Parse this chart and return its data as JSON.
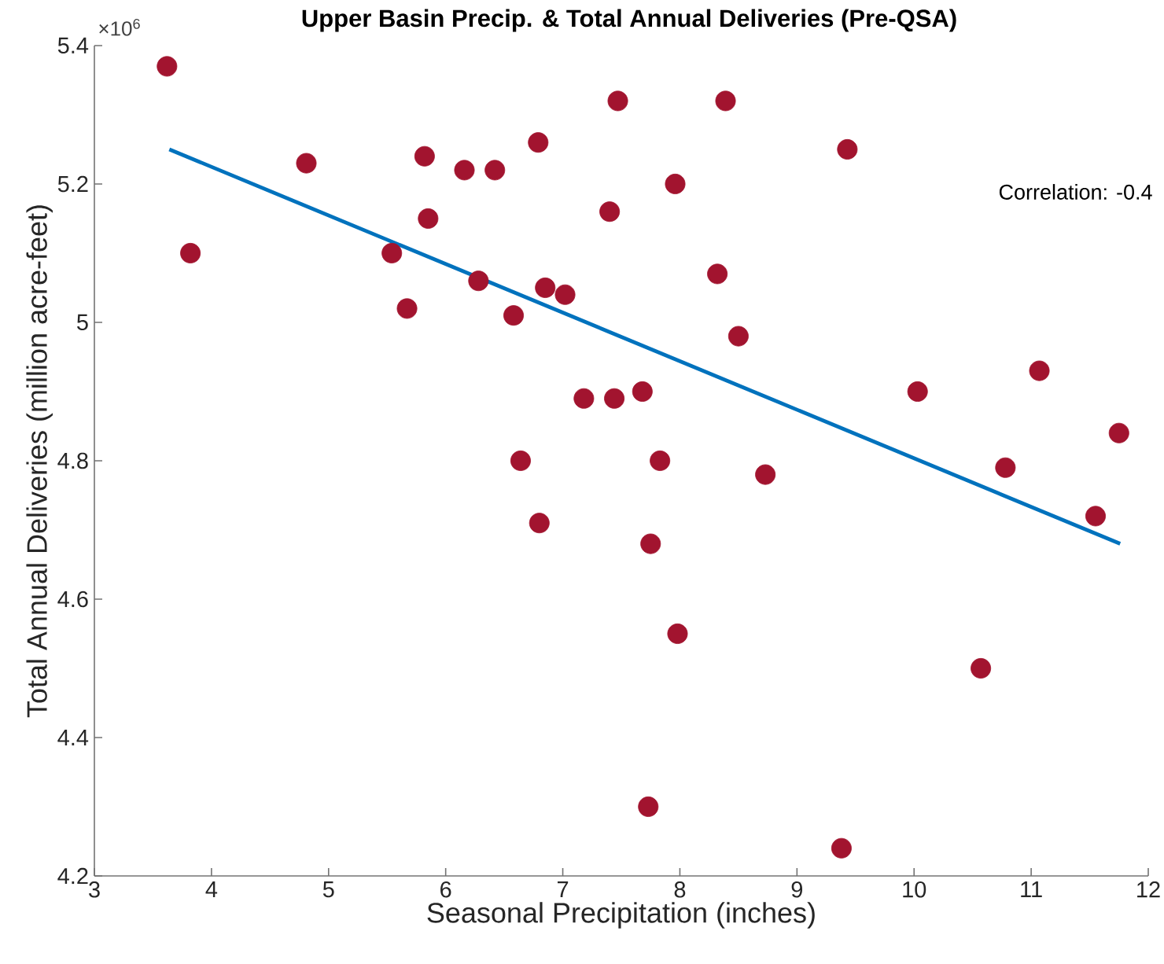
{
  "chart_data": {
    "type": "scatter",
    "title": "Upper Basin Precip. & Total Annual Deliveries (Pre-QSA)",
    "xlabel": "Seasonal Precipitation (inches)",
    "ylabel": "Total Annual Deliveries (million acre-feet)",
    "annotations": [
      "×10$^{6}$",
      "Correlation: -0.4"
    ],
    "xlim": [
      3,
      12
    ],
    "xticks": [
      3,
      4,
      5,
      6,
      7,
      8,
      9,
      10,
      11,
      12
    ],
    "ylim": [
      4.2,
      5.4
    ],
    "yticks": [
      4.2,
      4.4,
      4.6,
      4.8,
      5,
      5.2,
      5.4
    ],
    "series": [
      {
        "color": "#a2142f",
        "marker": "circle",
        "x": [
          3.62,
          3.82,
          4.81,
          5.82,
          6.16,
          6.42,
          6.79,
          7.47,
          5.85,
          5.54,
          6.28,
          5.67,
          6.85,
          7.02,
          6.58,
          7.4,
          7.18,
          7.44,
          6.64,
          8.39,
          9.43,
          7.96,
          8.32,
          8.5,
          7.68,
          10.03,
          11.07,
          11.75,
          7.83,
          8.73,
          10.78,
          11.55,
          7.75,
          7.98,
          10.57,
          7.73,
          9.38,
          6.8
        ],
        "values": [
          5.37,
          5.1,
          5.23,
          5.24,
          5.22,
          5.22,
          5.26,
          5.32,
          5.15,
          5.1,
          5.06,
          5.02,
          5.05,
          5.04,
          5.01,
          5.16,
          4.89,
          4.89,
          4.8,
          5.32,
          5.25,
          5.2,
          5.07,
          4.98,
          4.9,
          4.9,
          4.93,
          4.84,
          4.8,
          4.78,
          4.79,
          4.72,
          4.68,
          4.55,
          4.5,
          4.3,
          4.24,
          4.71
        ]
      },
      {
        "type": "line",
        "marker": "none",
        "color": "#0072bd",
        "x": [
          3.64,
          11.76
        ],
        "values": [
          5.25,
          4.68
        ]
      }
    ]
  }
}
